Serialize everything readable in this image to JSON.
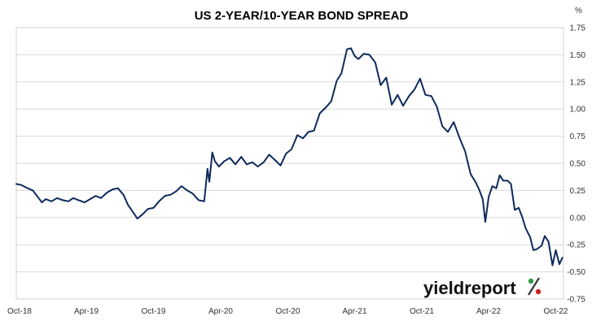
{
  "chart_data": {
    "type": "line",
    "title": "US 2-YEAR/10-YEAR BOND SPREAD",
    "y_unit": "%",
    "ylim": [
      -0.75,
      1.75
    ],
    "y_ticks": [
      "1.75",
      "1.50",
      "1.25",
      "1.00",
      "0.75",
      "0.50",
      "0.25",
      "0.00",
      "-0.25",
      "-0.50",
      "-0.75"
    ],
    "x_ticks": [
      "Oct-18",
      "Apr-19",
      "Oct-19",
      "Apr-20",
      "Oct-20",
      "Apr-21",
      "Oct-21",
      "Apr-22",
      "Oct-22"
    ],
    "grid": true,
    "line_color": "#0d2a5c",
    "series": [
      {
        "x": [
          "2018-10-01",
          "2018-10-15",
          "2018-11-01",
          "2018-11-15",
          "2018-12-01",
          "2018-12-10",
          "2018-12-20",
          "2019-01-05",
          "2019-01-20",
          "2019-02-05",
          "2019-02-20",
          "2019-03-05",
          "2019-03-20",
          "2019-04-05",
          "2019-04-20",
          "2019-05-05",
          "2019-05-20",
          "2019-06-05",
          "2019-06-20",
          "2019-07-05",
          "2019-07-20",
          "2019-08-01",
          "2019-08-15",
          "2019-08-27",
          "2019-09-10",
          "2019-09-25",
          "2019-10-10",
          "2019-10-25",
          "2019-11-10",
          "2019-11-25",
          "2019-12-10",
          "2019-12-25",
          "2020-01-10",
          "2020-01-25",
          "2020-02-10",
          "2020-02-25",
          "2020-03-05",
          "2020-03-10",
          "2020-03-18",
          "2020-03-25",
          "2020-04-05",
          "2020-04-20",
          "2020-05-05",
          "2020-05-20",
          "2020-06-05",
          "2020-06-20",
          "2020-07-05",
          "2020-07-20",
          "2020-08-05",
          "2020-08-20",
          "2020-09-05",
          "2020-09-20",
          "2020-10-05",
          "2020-10-20",
          "2020-11-05",
          "2020-11-20",
          "2020-12-05",
          "2020-12-20",
          "2021-01-05",
          "2021-01-20",
          "2021-02-05",
          "2021-02-20",
          "2021-03-05",
          "2021-03-20",
          "2021-03-31",
          "2021-04-10",
          "2021-04-20",
          "2021-05-05",
          "2021-05-20",
          "2021-06-05",
          "2021-06-20",
          "2021-07-05",
          "2021-07-20",
          "2021-08-05",
          "2021-08-20",
          "2021-09-05",
          "2021-09-20",
          "2021-10-05",
          "2021-10-20",
          "2021-11-05",
          "2021-11-20",
          "2021-12-05",
          "2021-12-20",
          "2022-01-05",
          "2022-01-20",
          "2022-02-05",
          "2022-02-20",
          "2022-03-05",
          "2022-03-15",
          "2022-03-25",
          "2022-04-01",
          "2022-04-10",
          "2022-04-20",
          "2022-05-01",
          "2022-05-10",
          "2022-05-20",
          "2022-06-01",
          "2022-06-10",
          "2022-06-20",
          "2022-07-01",
          "2022-07-10",
          "2022-07-20",
          "2022-08-01",
          "2022-08-10",
          "2022-08-20",
          "2022-09-01",
          "2022-09-10",
          "2022-09-20",
          "2022-10-01",
          "2022-10-10",
          "2022-10-20",
          "2022-10-28"
        ],
        "y": [
          0.31,
          0.3,
          0.27,
          0.25,
          0.18,
          0.14,
          0.17,
          0.15,
          0.18,
          0.16,
          0.15,
          0.18,
          0.16,
          0.14,
          0.17,
          0.2,
          0.18,
          0.23,
          0.26,
          0.27,
          0.21,
          0.12,
          0.05,
          -0.01,
          0.03,
          0.08,
          0.09,
          0.15,
          0.2,
          0.21,
          0.24,
          0.29,
          0.25,
          0.22,
          0.16,
          0.15,
          0.45,
          0.33,
          0.6,
          0.52,
          0.47,
          0.52,
          0.55,
          0.49,
          0.56,
          0.49,
          0.51,
          0.47,
          0.51,
          0.58,
          0.53,
          0.48,
          0.59,
          0.63,
          0.76,
          0.73,
          0.79,
          0.8,
          0.96,
          1.01,
          1.07,
          1.26,
          1.33,
          1.55,
          1.56,
          1.49,
          1.46,
          1.51,
          1.5,
          1.43,
          1.22,
          1.29,
          1.04,
          1.13,
          1.03,
          1.12,
          1.18,
          1.28,
          1.13,
          1.12,
          1.02,
          0.84,
          0.79,
          0.88,
          0.74,
          0.61,
          0.4,
          0.33,
          0.26,
          0.17,
          -0.04,
          0.19,
          0.29,
          0.27,
          0.39,
          0.34,
          0.34,
          0.31,
          0.07,
          0.09,
          0.01,
          -0.1,
          -0.18,
          -0.3,
          -0.29,
          -0.26,
          -0.17,
          -0.22,
          -0.44,
          -0.3,
          -0.43,
          -0.37
        ]
      }
    ]
  },
  "logo": {
    "text": "yieldreport",
    "symbol": "%",
    "colors": [
      "#2e9b48",
      "#cc2229"
    ]
  }
}
